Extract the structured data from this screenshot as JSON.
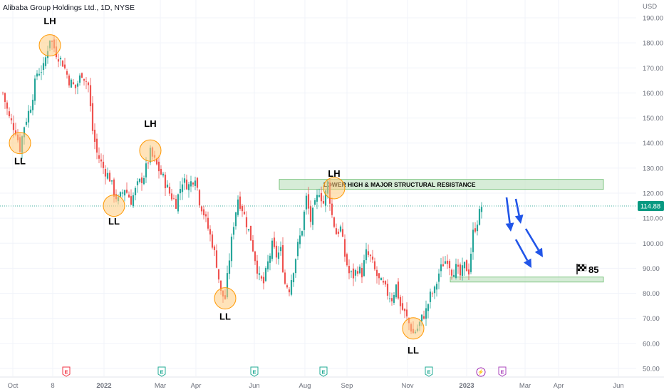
{
  "header": {
    "symbol_title": "Alibaba Group Holdings Ltd., 1D, NYSE",
    "currency": "USD"
  },
  "chart_data": {
    "type": "candlestick",
    "y_axis": {
      "ticks": [
        190.0,
        180.0,
        170.0,
        160.0,
        150.0,
        140.0,
        130.0,
        120.0,
        110.0,
        100.0,
        90.0,
        80.0,
        70.0,
        60.0,
        50.0
      ],
      "tick_labels": [
        "190.00",
        "180.00",
        "170.00",
        "160.00",
        "150.00",
        "140.00",
        "130.00",
        "120.00",
        "110.00",
        "100.00",
        "90.00",
        "80.00",
        "70.00",
        "60.00",
        "50.00"
      ],
      "ylim": [
        47,
        193
      ]
    },
    "x_axis": {
      "tick_labels": [
        "Oct",
        "8",
        "2022",
        "Mar",
        "Apr",
        "Jun",
        "Aug",
        "Sep",
        "Nov",
        "2023",
        "Mar",
        "Apr",
        "Jun"
      ]
    },
    "last_price": 114.88,
    "last_price_label": "114.88",
    "price_path": [
      [
        0,
        160
      ],
      [
        3,
        150
      ],
      [
        6,
        145
      ],
      [
        8,
        138
      ],
      [
        10,
        147
      ],
      [
        13,
        155
      ],
      [
        16,
        168
      ],
      [
        19,
        170
      ],
      [
        22,
        182
      ],
      [
        25,
        176
      ],
      [
        28,
        172
      ],
      [
        31,
        165
      ],
      [
        34,
        162
      ],
      [
        37,
        168
      ],
      [
        40,
        163
      ],
      [
        42,
        145
      ],
      [
        44,
        136
      ],
      [
        47,
        130
      ],
      [
        50,
        126
      ],
      [
        52,
        120
      ],
      [
        54,
        117
      ],
      [
        57,
        122
      ],
      [
        60,
        117
      ],
      [
        63,
        123
      ],
      [
        66,
        127
      ],
      [
        69,
        136
      ],
      [
        72,
        131
      ],
      [
        75,
        126
      ],
      [
        78,
        120
      ],
      [
        81,
        116
      ],
      [
        84,
        125
      ],
      [
        87,
        123
      ],
      [
        90,
        127
      ],
      [
        92,
        117
      ],
      [
        94,
        112
      ],
      [
        96,
        106
      ],
      [
        98,
        100
      ],
      [
        100,
        92
      ],
      [
        102,
        80
      ],
      [
        104,
        78
      ],
      [
        106,
        94
      ],
      [
        108,
        108
      ],
      [
        110,
        118
      ],
      [
        112,
        114
      ],
      [
        114,
        108
      ],
      [
        116,
        102
      ],
      [
        118,
        94
      ],
      [
        120,
        86
      ],
      [
        122,
        84
      ],
      [
        124,
        92
      ],
      [
        126,
        99
      ],
      [
        128,
        95
      ],
      [
        130,
        97
      ],
      [
        132,
        84
      ],
      [
        134,
        82
      ],
      [
        136,
        90
      ],
      [
        138,
        99
      ],
      [
        140,
        106
      ],
      [
        142,
        118
      ],
      [
        144,
        109
      ],
      [
        146,
        115
      ],
      [
        148,
        121
      ],
      [
        150,
        116
      ],
      [
        152,
        124
      ],
      [
        154,
        111
      ],
      [
        156,
        104
      ],
      [
        158,
        106
      ],
      [
        160,
        95
      ],
      [
        162,
        88
      ],
      [
        164,
        87
      ],
      [
        166,
        90
      ],
      [
        168,
        88
      ],
      [
        170,
        96
      ],
      [
        172,
        94
      ],
      [
        174,
        89
      ],
      [
        176,
        85
      ],
      [
        178,
        83
      ],
      [
        180,
        80
      ],
      [
        182,
        78
      ],
      [
        184,
        83
      ],
      [
        186,
        75
      ],
      [
        188,
        72
      ],
      [
        190,
        68
      ],
      [
        192,
        64
      ],
      [
        194,
        66
      ],
      [
        196,
        70
      ],
      [
        198,
        73
      ],
      [
        200,
        79
      ],
      [
        202,
        81
      ],
      [
        204,
        88
      ],
      [
        206,
        92
      ],
      [
        208,
        94
      ],
      [
        210,
        89
      ],
      [
        212,
        90
      ],
      [
        214,
        87
      ],
      [
        216,
        91
      ],
      [
        218,
        89
      ],
      [
        220,
        104
      ],
      [
        222,
        109
      ],
      [
        224,
        114.9
      ]
    ]
  },
  "annotations": {
    "labels": [
      {
        "text": "LH",
        "bar": 22,
        "price": 187.5
      },
      {
        "text": "LL",
        "bar": 8,
        "price": 131.5
      },
      {
        "text": "LH",
        "bar": 69,
        "price": 146.5
      },
      {
        "text": "LL",
        "bar": 52,
        "price": 107.5
      },
      {
        "text": "LL",
        "bar": 104,
        "price": 69.5
      },
      {
        "text": "LH",
        "bar": 155,
        "price": 126.5
      },
      {
        "text": "LL",
        "bar": 192,
        "price": 56.0
      }
    ],
    "circles": [
      {
        "bar": 22,
        "price": 179
      },
      {
        "bar": 8,
        "price": 140
      },
      {
        "bar": 69,
        "price": 137
      },
      {
        "bar": 52,
        "price": 115
      },
      {
        "bar": 104,
        "price": 78
      },
      {
        "bar": 155,
        "price": 122
      },
      {
        "bar": 192,
        "price": 66
      }
    ],
    "resistance_zone": {
      "label": "LOWER HIGH & MAJOR STRUCTURAL RESISTANCE",
      "low": 121.5,
      "high": 125.5
    },
    "support_zone": {
      "low": 84.5,
      "high": 86.5
    },
    "target_label": "85",
    "target_icon": "checkered-flag-icon",
    "event_markers": [
      {
        "icon": "earnings-icon",
        "letter": "E",
        "color": "#f23645"
      },
      {
        "icon": "earnings-icon",
        "letter": "E",
        "color": "#22ab94"
      },
      {
        "icon": "earnings-icon",
        "letter": "E",
        "color": "#22ab94"
      },
      {
        "icon": "earnings-icon",
        "letter": "E",
        "color": "#22ab94"
      },
      {
        "icon": "earnings-icon",
        "letter": "E",
        "color": "#22ab94"
      },
      {
        "icon": "dividend-lightning-icon",
        "letter": "⚡",
        "color": "#9c27b0"
      },
      {
        "icon": "earnings-icon",
        "letter": "E",
        "color": "#ab47bc"
      }
    ]
  },
  "colors": {
    "up": "#26a69a",
    "down": "#ef5350",
    "zone_fill": "#c8e6c9",
    "zone_stroke": "#66bb6a",
    "circle_fill": "#ffcc80",
    "circle_stroke": "#ff9800",
    "arrow": "#2155e8",
    "price_tag": "#089981"
  }
}
